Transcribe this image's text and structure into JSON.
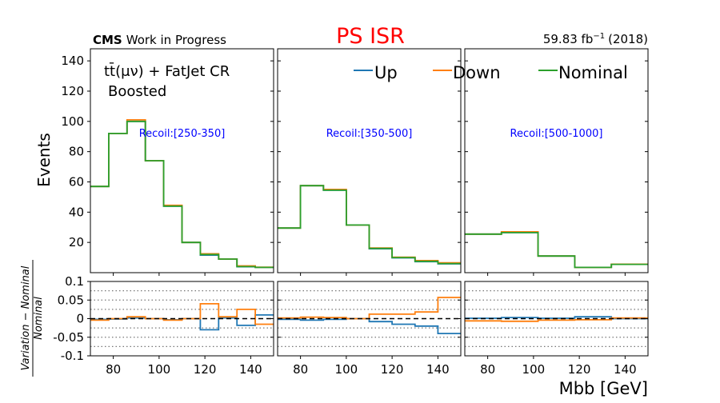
{
  "header": {
    "cms_label": "CMS",
    "cms_sub": "Work in Progress",
    "title": "PS ISR",
    "title_color": "#ff0000",
    "lumi_value": "59.83 fb",
    "lumi_exp": "−1",
    "lumi_year": "(2018)"
  },
  "annotation": {
    "line1": "tt̄(μν) + FatJet CR",
    "line2": "Boosted"
  },
  "legend": [
    {
      "name": "Up",
      "color": "#1f77b4"
    },
    {
      "name": "Down",
      "color": "#ff7f0e"
    },
    {
      "name": "Nominal",
      "color": "#2ca02c"
    }
  ],
  "axes": {
    "ylabel_top": "Events",
    "ylabel_bottom_num": "Variation − Nominal",
    "ylabel_bottom_den": "Nominal",
    "xlabel": "Mbb [GeV]"
  },
  "chart_data": {
    "type": "line",
    "style": "step-histogram",
    "xlim": [
      70,
      150
    ],
    "x_ticks": [
      80,
      100,
      120,
      140
    ],
    "top_ylim": [
      0,
      148
    ],
    "top_y_ticks": [
      20,
      40,
      60,
      80,
      100,
      120,
      140
    ],
    "ratio_ylim": [
      -0.1,
      0.1
    ],
    "ratio_y_ticks": [
      0.1,
      0.05,
      0,
      -0.05,
      -0.1
    ],
    "ratio_y_tick_labels": [
      "0.1",
      "0.05",
      "0",
      "-0.05",
      "-0.1"
    ],
    "ratio_dotted_gridlines": [
      0.075,
      0.05,
      0.025,
      -0.025,
      -0.05,
      -0.075
    ],
    "panels": [
      {
        "label": "Recoil:[250-350]",
        "edges": [
          70,
          78,
          86,
          94,
          102,
          110,
          118,
          126,
          134,
          142,
          150
        ],
        "nominal": [
          57,
          92,
          100,
          74,
          44,
          20,
          12,
          9,
          4,
          3.5
        ],
        "down": [
          57,
          92,
          101,
          74,
          44.5,
          20,
          12.5,
          9,
          4.5,
          3.6
        ],
        "up": [
          57,
          92,
          100,
          74,
          44,
          20,
          11.6,
          9,
          3.9,
          3.5
        ],
        "ratio_up": [
          -0.002,
          -0.001,
          0.002,
          0,
          -0.003,
          0,
          -0.03,
          0.002,
          -0.018,
          0.01
        ],
        "ratio_down": [
          -0.004,
          0,
          0.005,
          0,
          -0.004,
          0,
          0.04,
          0.005,
          0.025,
          -0.015
        ]
      },
      {
        "label": "Recoil:[350-500]",
        "edges": [
          70,
          80,
          90,
          100,
          110,
          120,
          130,
          140,
          150
        ],
        "nominal": [
          29.5,
          57.5,
          54.5,
          31.5,
          16,
          10,
          7.5,
          6
        ],
        "down": [
          29.5,
          57.5,
          55,
          31.5,
          16.3,
          10.2,
          8,
          6.5
        ],
        "up": [
          29.5,
          57.5,
          54.5,
          31.5,
          15.8,
          9.8,
          7.3,
          5.8
        ],
        "ratio_up": [
          -0.002,
          -0.004,
          -0.002,
          0,
          -0.008,
          -0.015,
          -0.02,
          -0.04
        ],
        "ratio_down": [
          0.002,
          0.004,
          0.003,
          0,
          0.012,
          0.012,
          0.018,
          0.057
        ]
      },
      {
        "label": "Recoil:[500-1000]",
        "edges": [
          70,
          86,
          102,
          118,
          134,
          150
        ],
        "nominal": [
          25.5,
          26.5,
          11,
          3.5,
          5.5
        ],
        "down": [
          25.5,
          27,
          11,
          3.5,
          5.6
        ],
        "up": [
          25.5,
          26.5,
          11,
          3.5,
          5.5
        ],
        "ratio_up": [
          0.001,
          0.003,
          0.001,
          0.005,
          0
        ],
        "ratio_down": [
          -0.006,
          -0.007,
          -0.004,
          -0.003,
          0.002
        ]
      }
    ]
  }
}
